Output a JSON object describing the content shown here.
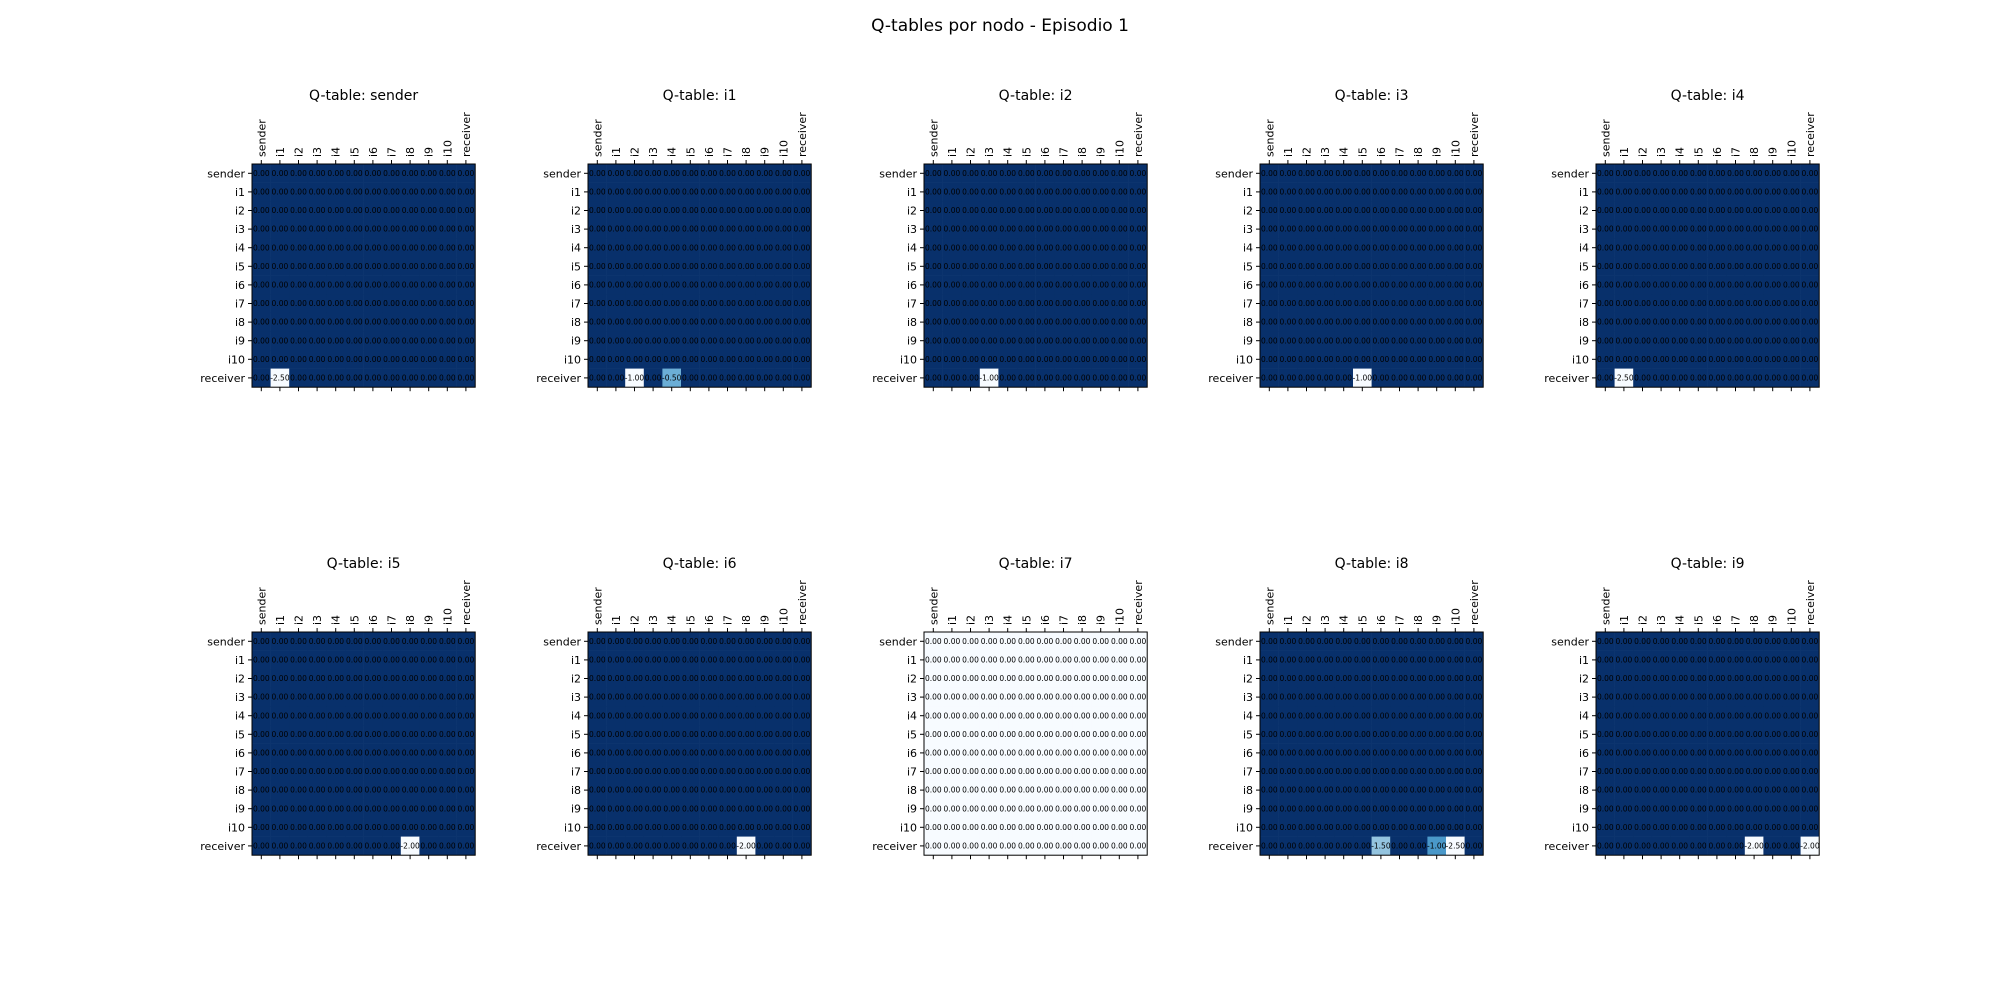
{
  "figure": {
    "title": "Q-tables por nodo - Episodio 1",
    "colormap": "Blues",
    "colormap_colors": [
      "#f7fbff",
      "#deebf7",
      "#c6dbef",
      "#9ecae1",
      "#6baed6",
      "#4292c6",
      "#2171b5",
      "#08519c",
      "#08306b"
    ]
  },
  "chart_data": [
    {
      "type": "heatmap",
      "title": "Q-table: sender",
      "rows": [
        "sender",
        "i1",
        "i2",
        "i3",
        "i4",
        "i5",
        "i6",
        "i7",
        "i8",
        "i9",
        "i10",
        "receiver"
      ],
      "cols": [
        "sender",
        "i1",
        "i2",
        "i3",
        "i4",
        "i5",
        "i6",
        "i7",
        "i8",
        "i9",
        "i10",
        "receiver"
      ],
      "cell_text_format": "0.00",
      "nonzero_cells": [
        {
          "row": "receiver",
          "col": "i1",
          "value": -2.5
        }
      ]
    },
    {
      "type": "heatmap",
      "title": "Q-table: i1",
      "rows": [
        "sender",
        "i1",
        "i2",
        "i3",
        "i4",
        "i5",
        "i6",
        "i7",
        "i8",
        "i9",
        "i10",
        "receiver"
      ],
      "cols": [
        "sender",
        "i1",
        "i2",
        "i3",
        "i4",
        "i5",
        "i6",
        "i7",
        "i8",
        "i9",
        "i10",
        "receiver"
      ],
      "cell_text_format": "0.00",
      "nonzero_cells": [
        {
          "row": "receiver",
          "col": "i2",
          "value": -1.0
        },
        {
          "row": "receiver",
          "col": "i4",
          "value": -0.5
        }
      ]
    },
    {
      "type": "heatmap",
      "title": "Q-table: i2",
      "rows": [
        "sender",
        "i1",
        "i2",
        "i3",
        "i4",
        "i5",
        "i6",
        "i7",
        "i8",
        "i9",
        "i10",
        "receiver"
      ],
      "cols": [
        "sender",
        "i1",
        "i2",
        "i3",
        "i4",
        "i5",
        "i6",
        "i7",
        "i8",
        "i9",
        "i10",
        "receiver"
      ],
      "cell_text_format": "0.00",
      "nonzero_cells": [
        {
          "row": "receiver",
          "col": "i3",
          "value": -1.0
        }
      ]
    },
    {
      "type": "heatmap",
      "title": "Q-table: i3",
      "rows": [
        "sender",
        "i1",
        "i2",
        "i3",
        "i4",
        "i5",
        "i6",
        "i7",
        "i8",
        "i9",
        "i10",
        "receiver"
      ],
      "cols": [
        "sender",
        "i1",
        "i2",
        "i3",
        "i4",
        "i5",
        "i6",
        "i7",
        "i8",
        "i9",
        "i10",
        "receiver"
      ],
      "cell_text_format": "0.00",
      "nonzero_cells": [
        {
          "row": "receiver",
          "col": "i5",
          "value": -1.0
        }
      ]
    },
    {
      "type": "heatmap",
      "title": "Q-table: i4",
      "rows": [
        "sender",
        "i1",
        "i2",
        "i3",
        "i4",
        "i5",
        "i6",
        "i7",
        "i8",
        "i9",
        "i10",
        "receiver"
      ],
      "cols": [
        "sender",
        "i1",
        "i2",
        "i3",
        "i4",
        "i5",
        "i6",
        "i7",
        "i8",
        "i9",
        "i10",
        "receiver"
      ],
      "cell_text_format": "0.00",
      "nonzero_cells": [
        {
          "row": "receiver",
          "col": "i1",
          "value": -2.5
        }
      ]
    },
    {
      "type": "heatmap",
      "title": "Q-table: i5",
      "rows": [
        "sender",
        "i1",
        "i2",
        "i3",
        "i4",
        "i5",
        "i6",
        "i7",
        "i8",
        "i9",
        "i10",
        "receiver"
      ],
      "cols": [
        "sender",
        "i1",
        "i2",
        "i3",
        "i4",
        "i5",
        "i6",
        "i7",
        "i8",
        "i9",
        "i10",
        "receiver"
      ],
      "cell_text_format": "0.00",
      "nonzero_cells": [
        {
          "row": "receiver",
          "col": "i8",
          "value": -2.0
        }
      ]
    },
    {
      "type": "heatmap",
      "title": "Q-table: i6",
      "rows": [
        "sender",
        "i1",
        "i2",
        "i3",
        "i4",
        "i5",
        "i6",
        "i7",
        "i8",
        "i9",
        "i10",
        "receiver"
      ],
      "cols": [
        "sender",
        "i1",
        "i2",
        "i3",
        "i4",
        "i5",
        "i6",
        "i7",
        "i8",
        "i9",
        "i10",
        "receiver"
      ],
      "cell_text_format": "0.00",
      "nonzero_cells": [
        {
          "row": "receiver",
          "col": "i8",
          "value": -2.0
        }
      ]
    },
    {
      "type": "heatmap",
      "title": "Q-table: i7",
      "rows": [
        "sender",
        "i1",
        "i2",
        "i3",
        "i4",
        "i5",
        "i6",
        "i7",
        "i8",
        "i9",
        "i10",
        "receiver"
      ],
      "cols": [
        "sender",
        "i1",
        "i2",
        "i3",
        "i4",
        "i5",
        "i6",
        "i7",
        "i8",
        "i9",
        "i10",
        "receiver"
      ],
      "cell_text_format": "0.00",
      "nonzero_cells": []
    },
    {
      "type": "heatmap",
      "title": "Q-table: i8",
      "rows": [
        "sender",
        "i1",
        "i2",
        "i3",
        "i4",
        "i5",
        "i6",
        "i7",
        "i8",
        "i9",
        "i10",
        "receiver"
      ],
      "cols": [
        "sender",
        "i1",
        "i2",
        "i3",
        "i4",
        "i5",
        "i6",
        "i7",
        "i8",
        "i9",
        "i10",
        "receiver"
      ],
      "cell_text_format": "0.00",
      "nonzero_cells": [
        {
          "row": "receiver",
          "col": "i6",
          "value": -1.5
        },
        {
          "row": "receiver",
          "col": "i9",
          "value": -1.0
        },
        {
          "row": "receiver",
          "col": "i10",
          "value": -2.5
        }
      ]
    },
    {
      "type": "heatmap",
      "title": "Q-table: i9",
      "rows": [
        "sender",
        "i1",
        "i2",
        "i3",
        "i4",
        "i5",
        "i6",
        "i7",
        "i8",
        "i9",
        "i10",
        "receiver"
      ],
      "cols": [
        "sender",
        "i1",
        "i2",
        "i3",
        "i4",
        "i5",
        "i6",
        "i7",
        "i8",
        "i9",
        "i10",
        "receiver"
      ],
      "cell_text_format": "0.00",
      "nonzero_cells": [
        {
          "row": "receiver",
          "col": "i8",
          "value": -2.0
        },
        {
          "row": "receiver",
          "col": "receiver",
          "value": -2.0
        }
      ]
    }
  ]
}
